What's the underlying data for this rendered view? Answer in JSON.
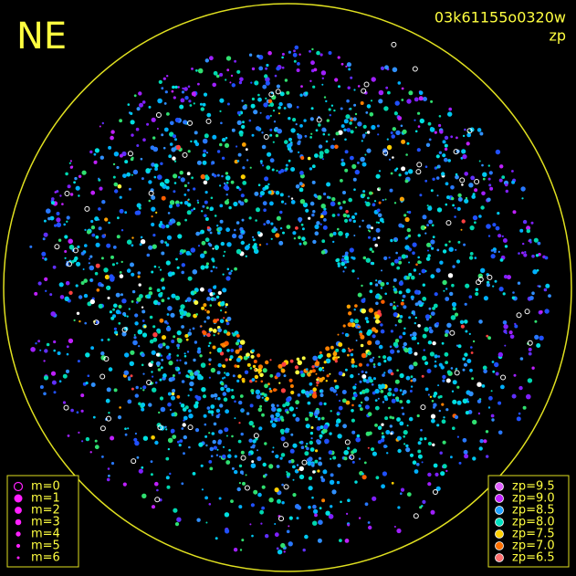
{
  "header": {
    "direction": "NE",
    "frame_id": "03k61155o0320w",
    "mode": "zp"
  },
  "legends": {
    "magnitude": {
      "items": [
        "m=0",
        "m=1",
        "m=2",
        "m=3",
        "m=4",
        "m=5",
        "m=6"
      ]
    },
    "zero_point": {
      "items": [
        {
          "label": "zp=9.5",
          "color": "#e060ff"
        },
        {
          "label": "zp=9.0",
          "color": "#c020ff"
        },
        {
          "label": "zp=8.5",
          "color": "#20a0ff"
        },
        {
          "label": "zp=8.0",
          "color": "#00e0c0"
        },
        {
          "label": "zp=7.5",
          "color": "#ffd000"
        },
        {
          "label": "zp=7.0",
          "color": "#ff7000"
        },
        {
          "label": "zp=6.5",
          "color": "#ff7070"
        }
      ]
    }
  }
}
